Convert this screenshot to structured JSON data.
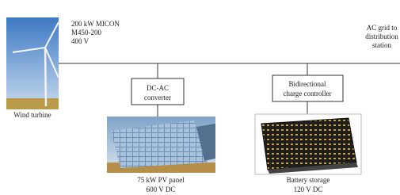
{
  "turbine": {
    "spec": [
      "200 kW MICON",
      "M450-200",
      "400 V"
    ],
    "label": "Wind turbine"
  },
  "grid": {
    "label": [
      "AC grid to",
      "distribution",
      "station"
    ]
  },
  "converter": {
    "label": [
      "DC-AC",
      "converter"
    ]
  },
  "controller": {
    "label": [
      "Bidirectional",
      "charge controller"
    ]
  },
  "pv": {
    "label": [
      "75 kW PV panel",
      "600 V DC"
    ]
  },
  "battery": {
    "label": [
      "Battery storage",
      "120 V DC"
    ]
  }
}
